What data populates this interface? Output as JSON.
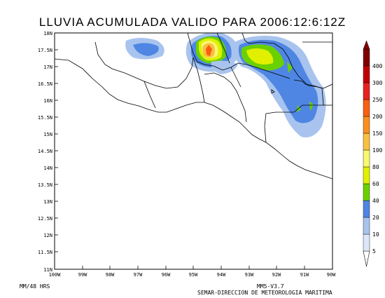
{
  "title": "LLUVIA ACUMULADA VALIDO PARA 2006:12:6:12Z",
  "lat_labels": [
    "18N",
    "17.5N",
    "17N",
    "16.5N",
    "16N",
    "15.5N",
    "15N",
    "14.5N",
    "14N",
    "13.5N",
    "13N",
    "12.5N",
    "12N",
    "11.5N",
    "11N"
  ],
  "lon_labels": [
    "100W",
    "99W",
    "98W",
    "97W",
    "96W",
    "95W",
    "94W",
    "93W",
    "92W",
    "91W",
    "90W"
  ],
  "colorbar": {
    "labels": [
      "5",
      "10",
      "20",
      "40",
      "60",
      "80",
      "100",
      "150",
      "200",
      "250",
      "300",
      "400"
    ],
    "colors": [
      "#dde6f8",
      "#a8c4ee",
      "#4f86e4",
      "#6bd000",
      "#e0f000",
      "#f8f870",
      "#f8c040",
      "#f89020",
      "#f86010",
      "#e82020",
      "#c00000",
      "#800000"
    ]
  },
  "footer": {
    "left": "MM/48 HRS",
    "model": "MM5-V3.7",
    "agency": "SEMAR-DIRECCION DE METEOROLOGIA MARITIMA"
  }
}
